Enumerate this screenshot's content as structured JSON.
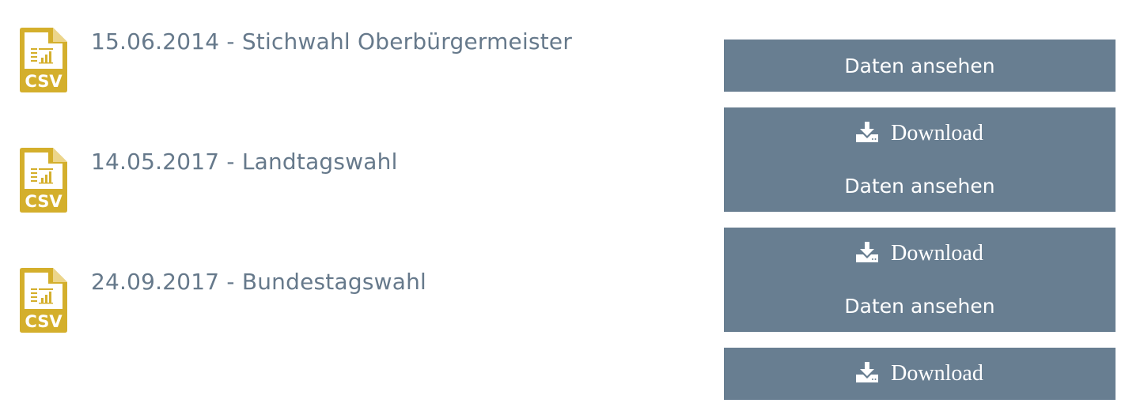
{
  "colors": {
    "csv_icon": "#d4af2c",
    "title_text": "#66798b",
    "button_bg": "#687e91",
    "button_text": "#ffffff"
  },
  "icons": {
    "file": "csv-file-icon",
    "download": "download-icon"
  },
  "items": [
    {
      "icon_label": "CSV",
      "title": "15.06.2014 - Stichwahl Oberbürgermeister",
      "view_label": "Daten ansehen",
      "download_label": "Download"
    },
    {
      "icon_label": "CSV",
      "title": "14.05.2017 - Landtagswahl",
      "view_label": "Daten ansehen",
      "download_label": "Download"
    },
    {
      "icon_label": "CSV",
      "title": "24.09.2017 - Bundestagswahl",
      "view_label": "Daten ansehen",
      "download_label": "Download"
    }
  ]
}
